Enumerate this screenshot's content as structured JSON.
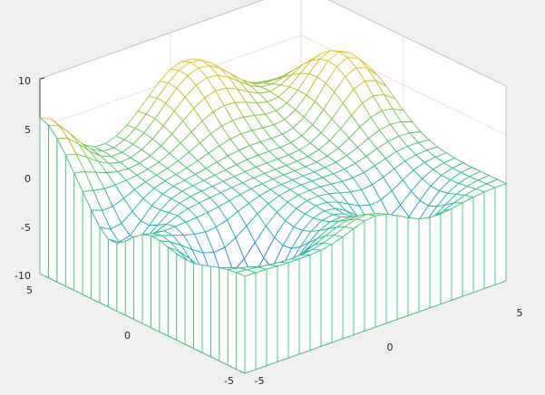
{
  "figure": {
    "background": "#f0f0f0",
    "axes_color": "#262626",
    "grid_color": "#dfdfdf",
    "face_color": "#ffffff"
  },
  "chart_data": {
    "type": "mesh",
    "title": "",
    "xlabel": "",
    "ylabel": "",
    "zlabel": "",
    "grid": true,
    "box": true,
    "colormap": "parula",
    "colormap_stops": [
      "#3e26a8",
      "#2f6fe0",
      "#1aa8cf",
      "#2dc09a",
      "#7ec948",
      "#d4bb32",
      "#f9d01f"
    ],
    "mesh_style": "wireframe with skirt",
    "x_range": [
      -5,
      5
    ],
    "y_range": [
      -5,
      5
    ],
    "z_range": [
      -10,
      10
    ],
    "x_ticks": [
      -5,
      0,
      5
    ],
    "y_ticks": [
      -5,
      0,
      5
    ],
    "z_ticks": [
      -10,
      -5,
      0,
      5,
      10
    ],
    "x_tick_labels": [
      "-5",
      "0",
      "5"
    ],
    "y_tick_labels": [
      "-5",
      "0",
      "5"
    ],
    "z_tick_labels": [
      "-10",
      "-5",
      "0",
      "5",
      "10"
    ],
    "grid_points": 25,
    "surface_profile": [
      {
        "x": -5,
        "y": 5,
        "z": 6
      },
      {
        "x": -5,
        "y": -5,
        "z": 0
      },
      {
        "x": 0,
        "y": 5,
        "z": 7
      },
      {
        "x": 0,
        "y": 0,
        "z": -2
      },
      {
        "x": 0,
        "y": -5,
        "z": 1
      },
      {
        "x": -3,
        "y": -2,
        "z": -8
      },
      {
        "x": 5,
        "y": 5,
        "z": 2
      },
      {
        "x": 5,
        "y": -5,
        "z": 1
      },
      {
        "x": 4,
        "y": 2,
        "z": 6
      },
      {
        "x": 2,
        "y": -3,
        "z": -4
      }
    ]
  }
}
